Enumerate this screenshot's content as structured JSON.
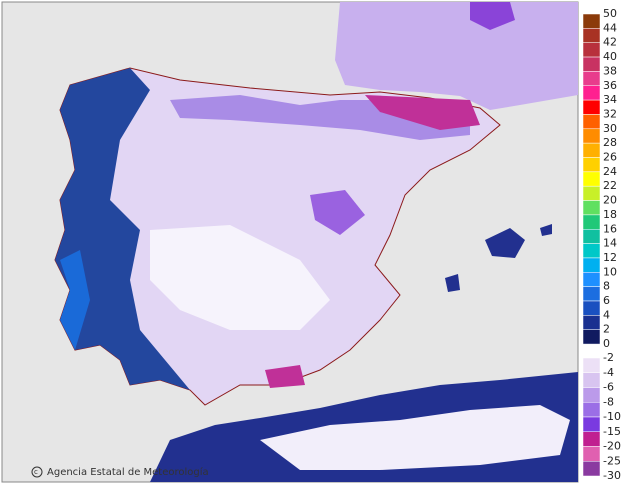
{
  "map": {
    "credit": "Agencia Estatal de Meteorología",
    "legend_warm": {
      "labels": [
        50,
        44,
        42,
        40,
        38,
        36,
        34,
        32,
        30,
        28,
        26,
        24,
        22,
        20,
        18,
        16,
        14,
        12,
        10,
        8,
        6,
        4,
        2,
        0
      ],
      "colors": [
        "#8b3a0a",
        "#a83224",
        "#b8303c",
        "#c83262",
        "#e83c8c",
        "#ff2090",
        "#ff0000",
        "#ff6000",
        "#ff8c00",
        "#ffb000",
        "#ffd000",
        "#ffff00",
        "#c8f028",
        "#60e060",
        "#20c878",
        "#10c0a0",
        "#00c8c8",
        "#00b0f0",
        "#1e90ff",
        "#1c6ee0",
        "#1a50c0",
        "#1a3090",
        "#101a60"
      ]
    },
    "legend_cold": {
      "labels": [
        -2,
        -4,
        -6,
        -8,
        -10,
        -15,
        -20,
        -25,
        -30
      ],
      "colors": [
        "#ece0f6",
        "#d8c4f0",
        "#bb9aea",
        "#9b6ee6",
        "#7a3ae0",
        "#c02090",
        "#e060b0",
        "#8a3aa0"
      ]
    }
  }
}
